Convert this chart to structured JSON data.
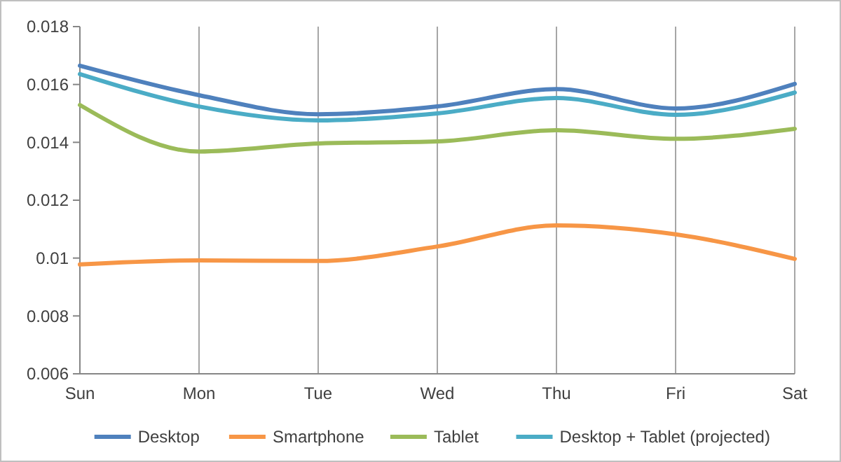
{
  "chart_data": {
    "type": "line",
    "categories": [
      "Sun",
      "Mon",
      "Tue",
      "Wed",
      "Thu",
      "Fri",
      "Sat"
    ],
    "series": [
      {
        "name": "Desktop",
        "color": "#4f81bd",
        "values": [
          0.01665,
          0.01563,
          0.01497,
          0.01524,
          0.01584,
          0.01517,
          0.01602
        ]
      },
      {
        "name": "Smartphone",
        "color": "#f79646",
        "values": [
          0.00978,
          0.00992,
          0.0099,
          0.0104,
          0.01113,
          0.01082,
          0.00997
        ]
      },
      {
        "name": "Tablet",
        "color": "#9bbb59",
        "values": [
          0.01529,
          0.01368,
          0.01396,
          0.01403,
          0.01442,
          0.01412,
          0.01447
        ]
      },
      {
        "name": "Desktop + Tablet (projected)",
        "color": "#4bacc6",
        "values": [
          0.01636,
          0.01524,
          0.01476,
          0.015,
          0.01553,
          0.01495,
          0.01572
        ]
      }
    ],
    "ylim": [
      0.006,
      0.018
    ],
    "yticks": [
      0.006,
      0.008,
      0.01,
      0.012,
      0.014,
      0.016,
      0.018
    ],
    "grid": "x",
    "legend": "bottom",
    "marker": "none",
    "line_style": "solid"
  }
}
